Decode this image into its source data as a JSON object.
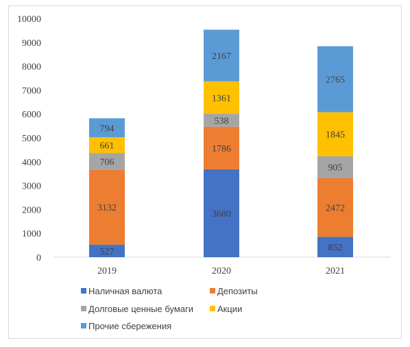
{
  "chart_data": {
    "type": "bar",
    "stacked": true,
    "categories": [
      "2019",
      "2020",
      "2021"
    ],
    "series": [
      {
        "name": "Наличная валюта",
        "color": "#4472c4",
        "values": [
          527,
          3680,
          852
        ]
      },
      {
        "name": "Депозиты",
        "color": "#ed7d31",
        "values": [
          3132,
          1786,
          2472
        ]
      },
      {
        "name": "Долговые ценные бумаги",
        "color": "#a5a5a5",
        "values": [
          706,
          538,
          905
        ]
      },
      {
        "name": "Акции",
        "color": "#ffc000",
        "values": [
          661,
          1361,
          1845
        ]
      },
      {
        "name": "Прочие сбережения",
        "color": "#5b9bd5",
        "values": [
          794,
          2167,
          2765
        ]
      }
    ],
    "ylim": [
      0,
      10000
    ],
    "yticks": [
      "0",
      "1000",
      "2000",
      "3000",
      "4000",
      "5000",
      "6000",
      "7000",
      "8000",
      "9000",
      "10000"
    ],
    "grid": false,
    "legend_position": "bottom-left"
  }
}
